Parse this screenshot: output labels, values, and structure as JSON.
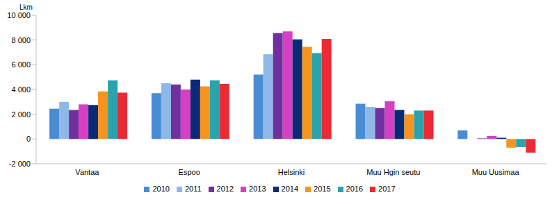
{
  "chart_data": {
    "type": "bar",
    "y_label": "Lkm",
    "categories": [
      "Vantaa",
      "Espoo",
      "Helsinki",
      "Muu Hgin seutu",
      "Muu Uusimaa"
    ],
    "series": [
      {
        "name": "2010",
        "color": "#4A8CD4",
        "values": [
          2450,
          3700,
          5200,
          2850,
          700
        ]
      },
      {
        "name": "2011",
        "color": "#8DB8E8",
        "values": [
          3000,
          4500,
          6850,
          2600,
          0
        ]
      },
      {
        "name": "2012",
        "color": "#7030A0",
        "values": [
          2350,
          4400,
          8550,
          2500,
          50
        ]
      },
      {
        "name": "2013",
        "color": "#D63FC4",
        "values": [
          2800,
          4000,
          8700,
          3050,
          250
        ]
      },
      {
        "name": "2014",
        "color": "#0A2A78",
        "values": [
          2750,
          4800,
          8050,
          2350,
          100
        ]
      },
      {
        "name": "2015",
        "color": "#F7941D",
        "values": [
          3850,
          4250,
          7450,
          2000,
          -700
        ]
      },
      {
        "name": "2016",
        "color": "#2AA3AC",
        "values": [
          4750,
          4750,
          6950,
          2300,
          -650
        ]
      },
      {
        "name": "2017",
        "color": "#EC2A35",
        "values": [
          3750,
          4450,
          8100,
          2300,
          -1100
        ]
      }
    ],
    "ylim": [
      -2000,
      10000
    ],
    "yticks": [
      {
        "value": -2000,
        "label": "-2 000"
      },
      0,
      {
        "value": 2000,
        "label": "2 000"
      },
      {
        "value": 4000,
        "label": "4 000"
      },
      {
        "value": 6000,
        "label": "6 000"
      },
      {
        "value": 8000,
        "label": "8 000"
      },
      {
        "value": 10000,
        "label": "10 000"
      }
    ],
    "grid": false,
    "legend": "bottom"
  }
}
